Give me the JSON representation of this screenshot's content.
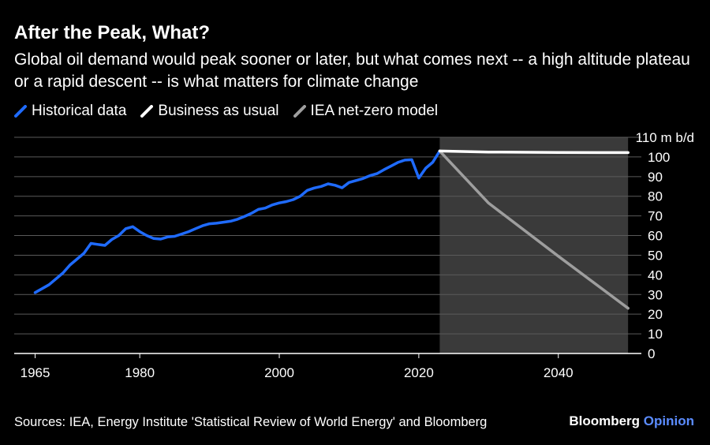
{
  "title": "After the Peak, What?",
  "subtitle": "Global oil demand would peak sooner or later, but what comes next -- a high altitude plateau or a rapid descent -- is what matters for climate change",
  "legend": [
    {
      "label": "Historical data",
      "color": "#1f6bff"
    },
    {
      "label": "Business as usual",
      "color": "#ffffff"
    },
    {
      "label": "IEA net-zero model",
      "color": "#9e9e9e"
    }
  ],
  "source": "Sources: IEA, Energy Institute 'Statistical Review of World Energy' and Bloomberg",
  "brand": {
    "name": "Bloomberg",
    "suffix": "Opinion"
  },
  "chart_data": {
    "type": "line",
    "title": "After the Peak, What?",
    "xlim": [
      1962,
      2051
    ],
    "ylim": [
      0,
      110
    ],
    "x_ticks": [
      1965,
      1980,
      2000,
      2020,
      2040
    ],
    "y_ticks": [
      0,
      10,
      20,
      30,
      40,
      50,
      60,
      70,
      80,
      90,
      100,
      110
    ],
    "y_top_tick_label": "110 m b/d",
    "grid": "horizontal",
    "legend_position": "top-left",
    "shaded_region": {
      "x_start": 2023,
      "x_end": 2050,
      "color": "#3a3a3a"
    },
    "series": [
      {
        "name": "Historical data",
        "color": "#1f6bff",
        "points": [
          [
            1965,
            31
          ],
          [
            1966,
            33
          ],
          [
            1967,
            35
          ],
          [
            1968,
            38
          ],
          [
            1969,
            41
          ],
          [
            1970,
            45
          ],
          [
            1971,
            48
          ],
          [
            1972,
            51
          ],
          [
            1973,
            56
          ],
          [
            1974,
            55.5
          ],
          [
            1975,
            55
          ],
          [
            1976,
            58
          ],
          [
            1977,
            60
          ],
          [
            1978,
            63.5
          ],
          [
            1979,
            64.5
          ],
          [
            1980,
            62
          ],
          [
            1981,
            60
          ],
          [
            1982,
            58.5
          ],
          [
            1983,
            58.2
          ],
          [
            1984,
            59.3
          ],
          [
            1985,
            59.6
          ],
          [
            1986,
            60.8
          ],
          [
            1987,
            62
          ],
          [
            1988,
            63.5
          ],
          [
            1989,
            65
          ],
          [
            1990,
            66
          ],
          [
            1991,
            66.3
          ],
          [
            1992,
            66.8
          ],
          [
            1993,
            67.3
          ],
          [
            1994,
            68.3
          ],
          [
            1995,
            69.7
          ],
          [
            1996,
            71.3
          ],
          [
            1997,
            73.3
          ],
          [
            1998,
            74
          ],
          [
            1999,
            75.6
          ],
          [
            2000,
            76.6
          ],
          [
            2001,
            77.3
          ],
          [
            2002,
            78.3
          ],
          [
            2003,
            80
          ],
          [
            2004,
            83
          ],
          [
            2005,
            84.2
          ],
          [
            2006,
            85
          ],
          [
            2007,
            86.3
          ],
          [
            2008,
            85.6
          ],
          [
            2009,
            84.3
          ],
          [
            2010,
            87
          ],
          [
            2011,
            88
          ],
          [
            2012,
            89
          ],
          [
            2013,
            90.5
          ],
          [
            2014,
            91.5
          ],
          [
            2015,
            93.5
          ],
          [
            2016,
            95.3
          ],
          [
            2017,
            97.2
          ],
          [
            2018,
            98.4
          ],
          [
            2019,
            98.6
          ],
          [
            2020,
            89.3
          ],
          [
            2021,
            94.3
          ],
          [
            2022,
            97.3
          ],
          [
            2023,
            103
          ]
        ]
      },
      {
        "name": "Business as usual",
        "color": "#ffffff",
        "points": [
          [
            2023,
            103
          ],
          [
            2030,
            102.5
          ],
          [
            2040,
            102.3
          ],
          [
            2050,
            102.2
          ]
        ]
      },
      {
        "name": "IEA net-zero model",
        "color": "#9e9e9e",
        "points": [
          [
            2023,
            103
          ],
          [
            2030,
            76.5
          ],
          [
            2040,
            49.5
          ],
          [
            2050,
            23
          ]
        ]
      }
    ]
  }
}
